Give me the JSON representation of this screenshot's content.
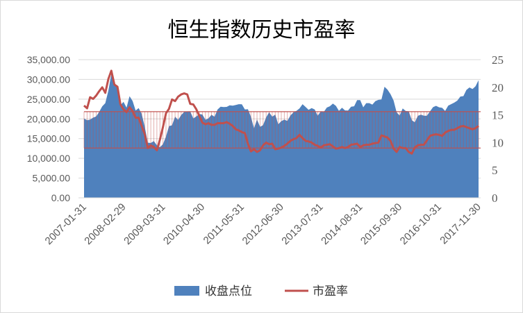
{
  "chart_data": {
    "type": "area+line",
    "title": "恒生指数历史市盈率",
    "x_start": "2007-01-31",
    "x_frequency": "monthly (month-end)",
    "x_tick_labels": [
      "2007-01-31",
      "2008-02-29",
      "2009-03-31",
      "2010-04-30",
      "2011-05-31",
      "2012-06-30",
      "2013-07-31",
      "2014-08-31",
      "2015-09-30",
      "2016-10-31",
      "2017-11-30"
    ],
    "x_tick_interval_months": 13,
    "left_axis": {
      "min": 0,
      "max": 35000,
      "step": 5000,
      "tick_labels": [
        "0.00",
        "5,000.00",
        "10,000.00",
        "15,000.00",
        "20,000.00",
        "25,000.00",
        "30,000.00",
        "35,000.00"
      ]
    },
    "right_axis": {
      "min": 0,
      "max": 25,
      "step": 5,
      "tick_labels": [
        "0",
        "5",
        "10",
        "15",
        "20",
        "25"
      ]
    },
    "grid": true,
    "legend_position": "bottom",
    "band": {
      "axis": "right",
      "upper": 15.6,
      "lower": 9.0,
      "color": "#C0504D"
    },
    "series": [
      {
        "name": "收盘点位",
        "type": "area",
        "axis": "left",
        "color": "#4F81BD",
        "values": [
          20106,
          19651,
          19801,
          20318,
          20634,
          21773,
          23185,
          23984,
          27142,
          31352,
          28643,
          27813,
          23456,
          24332,
          22849,
          25755,
          24533,
          22102,
          22731,
          21262,
          18016,
          13969,
          13888,
          14387,
          13278,
          12812,
          13576,
          15521,
          18171,
          18379,
          20573,
          19724,
          20955,
          21753,
          21822,
          21873,
          20122,
          20608,
          21239,
          21108,
          19765,
          20129,
          21030,
          20536,
          22358,
          23096,
          23008,
          23035,
          23447,
          23338,
          23528,
          23721,
          23684,
          22398,
          22440,
          20535,
          17592,
          19864,
          17989,
          18434,
          20390,
          21680,
          20556,
          21094,
          18630,
          19441,
          19796,
          19482,
          20840,
          21642,
          22030,
          22657,
          23730,
          23020,
          22300,
          22737,
          22392,
          20803,
          21884,
          21731,
          22860,
          23206,
          23881,
          23306,
          22035,
          22837,
          22151,
          22134,
          23082,
          23191,
          24757,
          24742,
          22933,
          23998,
          23987,
          23605,
          24507,
          24823,
          24901,
          28133,
          27424,
          26250,
          24636,
          21671,
          20846,
          22640,
          21996,
          21914,
          19683,
          19112,
          20777,
          21067,
          20815,
          20794,
          21891,
          22977,
          23297,
          22935,
          22790,
          22001,
          23361,
          23741,
          24112,
          24615,
          25661,
          25765,
          27324,
          27970,
          27554,
          28246,
          29800
        ]
      },
      {
        "name": "市盈率",
        "type": "line",
        "axis": "right",
        "color": "#C0504D",
        "values": [
          16.7,
          16.2,
          18.2,
          17.9,
          18.5,
          19.3,
          20.0,
          19.0,
          21.5,
          23.0,
          20.5,
          20.1,
          16.9,
          16.0,
          15.5,
          16.4,
          15.7,
          14.5,
          14.5,
          13.0,
          11.5,
          9.0,
          9.5,
          9.2,
          8.6,
          10.5,
          12.8,
          15.3,
          16.1,
          17.8,
          17.5,
          18.3,
          18.7,
          18.9,
          18.7,
          17.0,
          16.9,
          16.0,
          14.8,
          13.6,
          13.3,
          13.5,
          13.2,
          13.2,
          13.5,
          13.5,
          13.5,
          13.7,
          13.4,
          13.0,
          12.4,
          12.2,
          11.9,
          11.7,
          9.8,
          8.4,
          8.8,
          8.3,
          8.6,
          9.5,
          10.0,
          9.7,
          9.8,
          8.8,
          8.9,
          9.1,
          9.4,
          9.8,
          10.3,
          10.6,
          10.8,
          11.4,
          10.8,
          10.3,
          10.2,
          10.0,
          9.6,
          9.4,
          9.1,
          9.5,
          9.6,
          9.7,
          9.3,
          8.9,
          9.0,
          9.2,
          9.0,
          9.2,
          9.6,
          9.7,
          9.8,
          9.2,
          9.5,
          9.6,
          9.6,
          9.8,
          9.9,
          10.0,
          11.3,
          11.1,
          10.9,
          10.3,
          8.9,
          8.3,
          9.2,
          9.0,
          9.0,
          8.3,
          8.0,
          9.1,
          9.5,
          9.6,
          9.6,
          10.4,
          11.2,
          11.4,
          11.5,
          11.4,
          11.2,
          11.8,
          12.1,
          12.3,
          12.3,
          12.6,
          12.9,
          13.0,
          12.8,
          12.6,
          12.4,
          12.6,
          13.0
        ]
      }
    ]
  }
}
